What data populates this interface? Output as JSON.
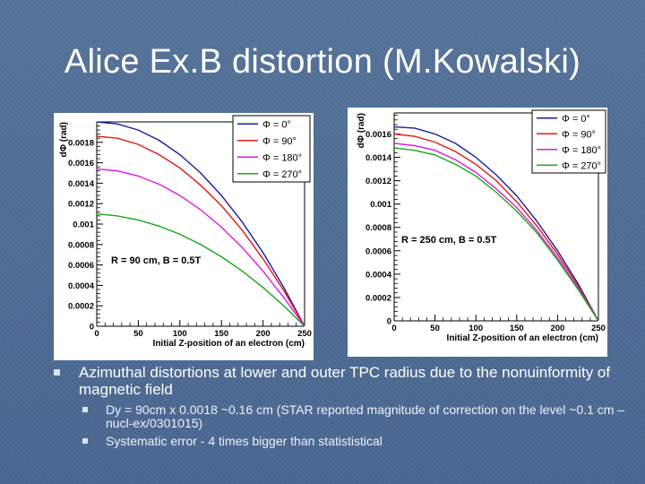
{
  "slide": {
    "title": "Alice Ex.B distortion (M.Kowalski)",
    "bullet_main": "Azimuthal distortions at lower and outer TPC radius due to the nonuinformity of magnetic field",
    "sub_bullets": [
      "Dy = 90cm x 0.0018 ~0.16 cm  (STAR reported magnitude of correction on the level ~0.1 cm – nucl-ex/0301015)",
      "Systematic error -  4 times bigger than statististical"
    ]
  },
  "chart_data": [
    {
      "type": "line",
      "annotation": "R = 90 cm, B = 0.5T",
      "xlabel": "Initial Z-position of an electron (cm)",
      "ylabel": "dΦ (rad)",
      "xlim": [
        0,
        250
      ],
      "ylim": [
        0,
        0.002
      ],
      "xticks": [
        "0",
        "50",
        "100",
        "150",
        "200",
        "250"
      ],
      "yticks": [
        "0",
        "0.0002",
        "0.0004",
        "0.0006",
        "0.0008",
        "0.001",
        "0.0012",
        "0.0014",
        "0.0016",
        "0.0018"
      ],
      "legend_position": "top-right",
      "grid": false,
      "x": [
        0,
        25,
        50,
        75,
        100,
        125,
        150,
        175,
        200,
        225,
        250
      ],
      "series": [
        {
          "name": "Φ = 0°",
          "color": "#1a1aa8",
          "values": [
            0.002,
            0.00198,
            0.00192,
            0.00182,
            0.00168,
            0.0015,
            0.00128,
            0.00102,
            0.00072,
            0.00038,
            0.0
          ]
        },
        {
          "name": "Φ = 90°",
          "color": "#e01818",
          "values": [
            0.00186,
            0.00184,
            0.00178,
            0.00168,
            0.00155,
            0.00138,
            0.00118,
            0.00094,
            0.00066,
            0.00035,
            0.0
          ]
        },
        {
          "name": "Φ = 180°",
          "color": "#e018e0",
          "values": [
            0.00154,
            0.00152,
            0.00147,
            0.00139,
            0.00128,
            0.00114,
            0.00097,
            0.00077,
            0.00054,
            0.00028,
            0.0
          ]
        },
        {
          "name": "Φ = 270°",
          "color": "#18a818",
          "values": [
            0.0011,
            0.00108,
            0.00104,
            0.00098,
            0.0009,
            0.0008,
            0.00068,
            0.00054,
            0.00038,
            0.0002,
            0.0
          ]
        }
      ]
    },
    {
      "type": "line",
      "annotation": "R = 250 cm, B = 0.5T",
      "xlabel": "Initial Z-position of an electron (cm)",
      "ylabel": "dΦ (rad)",
      "xlim": [
        0,
        250
      ],
      "ylim": [
        0,
        0.00178
      ],
      "xticks": [
        "0",
        "50",
        "100",
        "150",
        "200",
        "250"
      ],
      "yticks": [
        "0",
        "0.0002",
        "0.0004",
        "0.0006",
        "0.0008",
        "0.001",
        "0.0012",
        "0.0014",
        "0.0016"
      ],
      "legend_position": "top-right",
      "grid": false,
      "x": [
        0,
        25,
        50,
        75,
        100,
        125,
        150,
        175,
        200,
        225,
        250
      ],
      "series": [
        {
          "name": "Φ = 0°",
          "color": "#1a1aa8",
          "values": [
            0.00166,
            0.00165,
            0.0016,
            0.00152,
            0.0014,
            0.00125,
            0.00107,
            0.00085,
            0.0006,
            0.00032,
            0.0
          ]
        },
        {
          "name": "Φ = 90°",
          "color": "#e01818",
          "values": [
            0.0016,
            0.00158,
            0.00153,
            0.00145,
            0.00134,
            0.0012,
            0.00102,
            0.00081,
            0.00057,
            0.0003,
            0.0
          ]
        },
        {
          "name": "Φ = 180°",
          "color": "#e018e0",
          "values": [
            0.00152,
            0.0015,
            0.00146,
            0.00138,
            0.00127,
            0.00113,
            0.00097,
            0.00077,
            0.00054,
            0.00028,
            0.0
          ]
        },
        {
          "name": "Φ = 270°",
          "color": "#18a818",
          "values": [
            0.00148,
            0.00146,
            0.00142,
            0.00134,
            0.00124,
            0.0011,
            0.00094,
            0.00075,
            0.00052,
            0.00027,
            0.0
          ]
        }
      ]
    }
  ]
}
